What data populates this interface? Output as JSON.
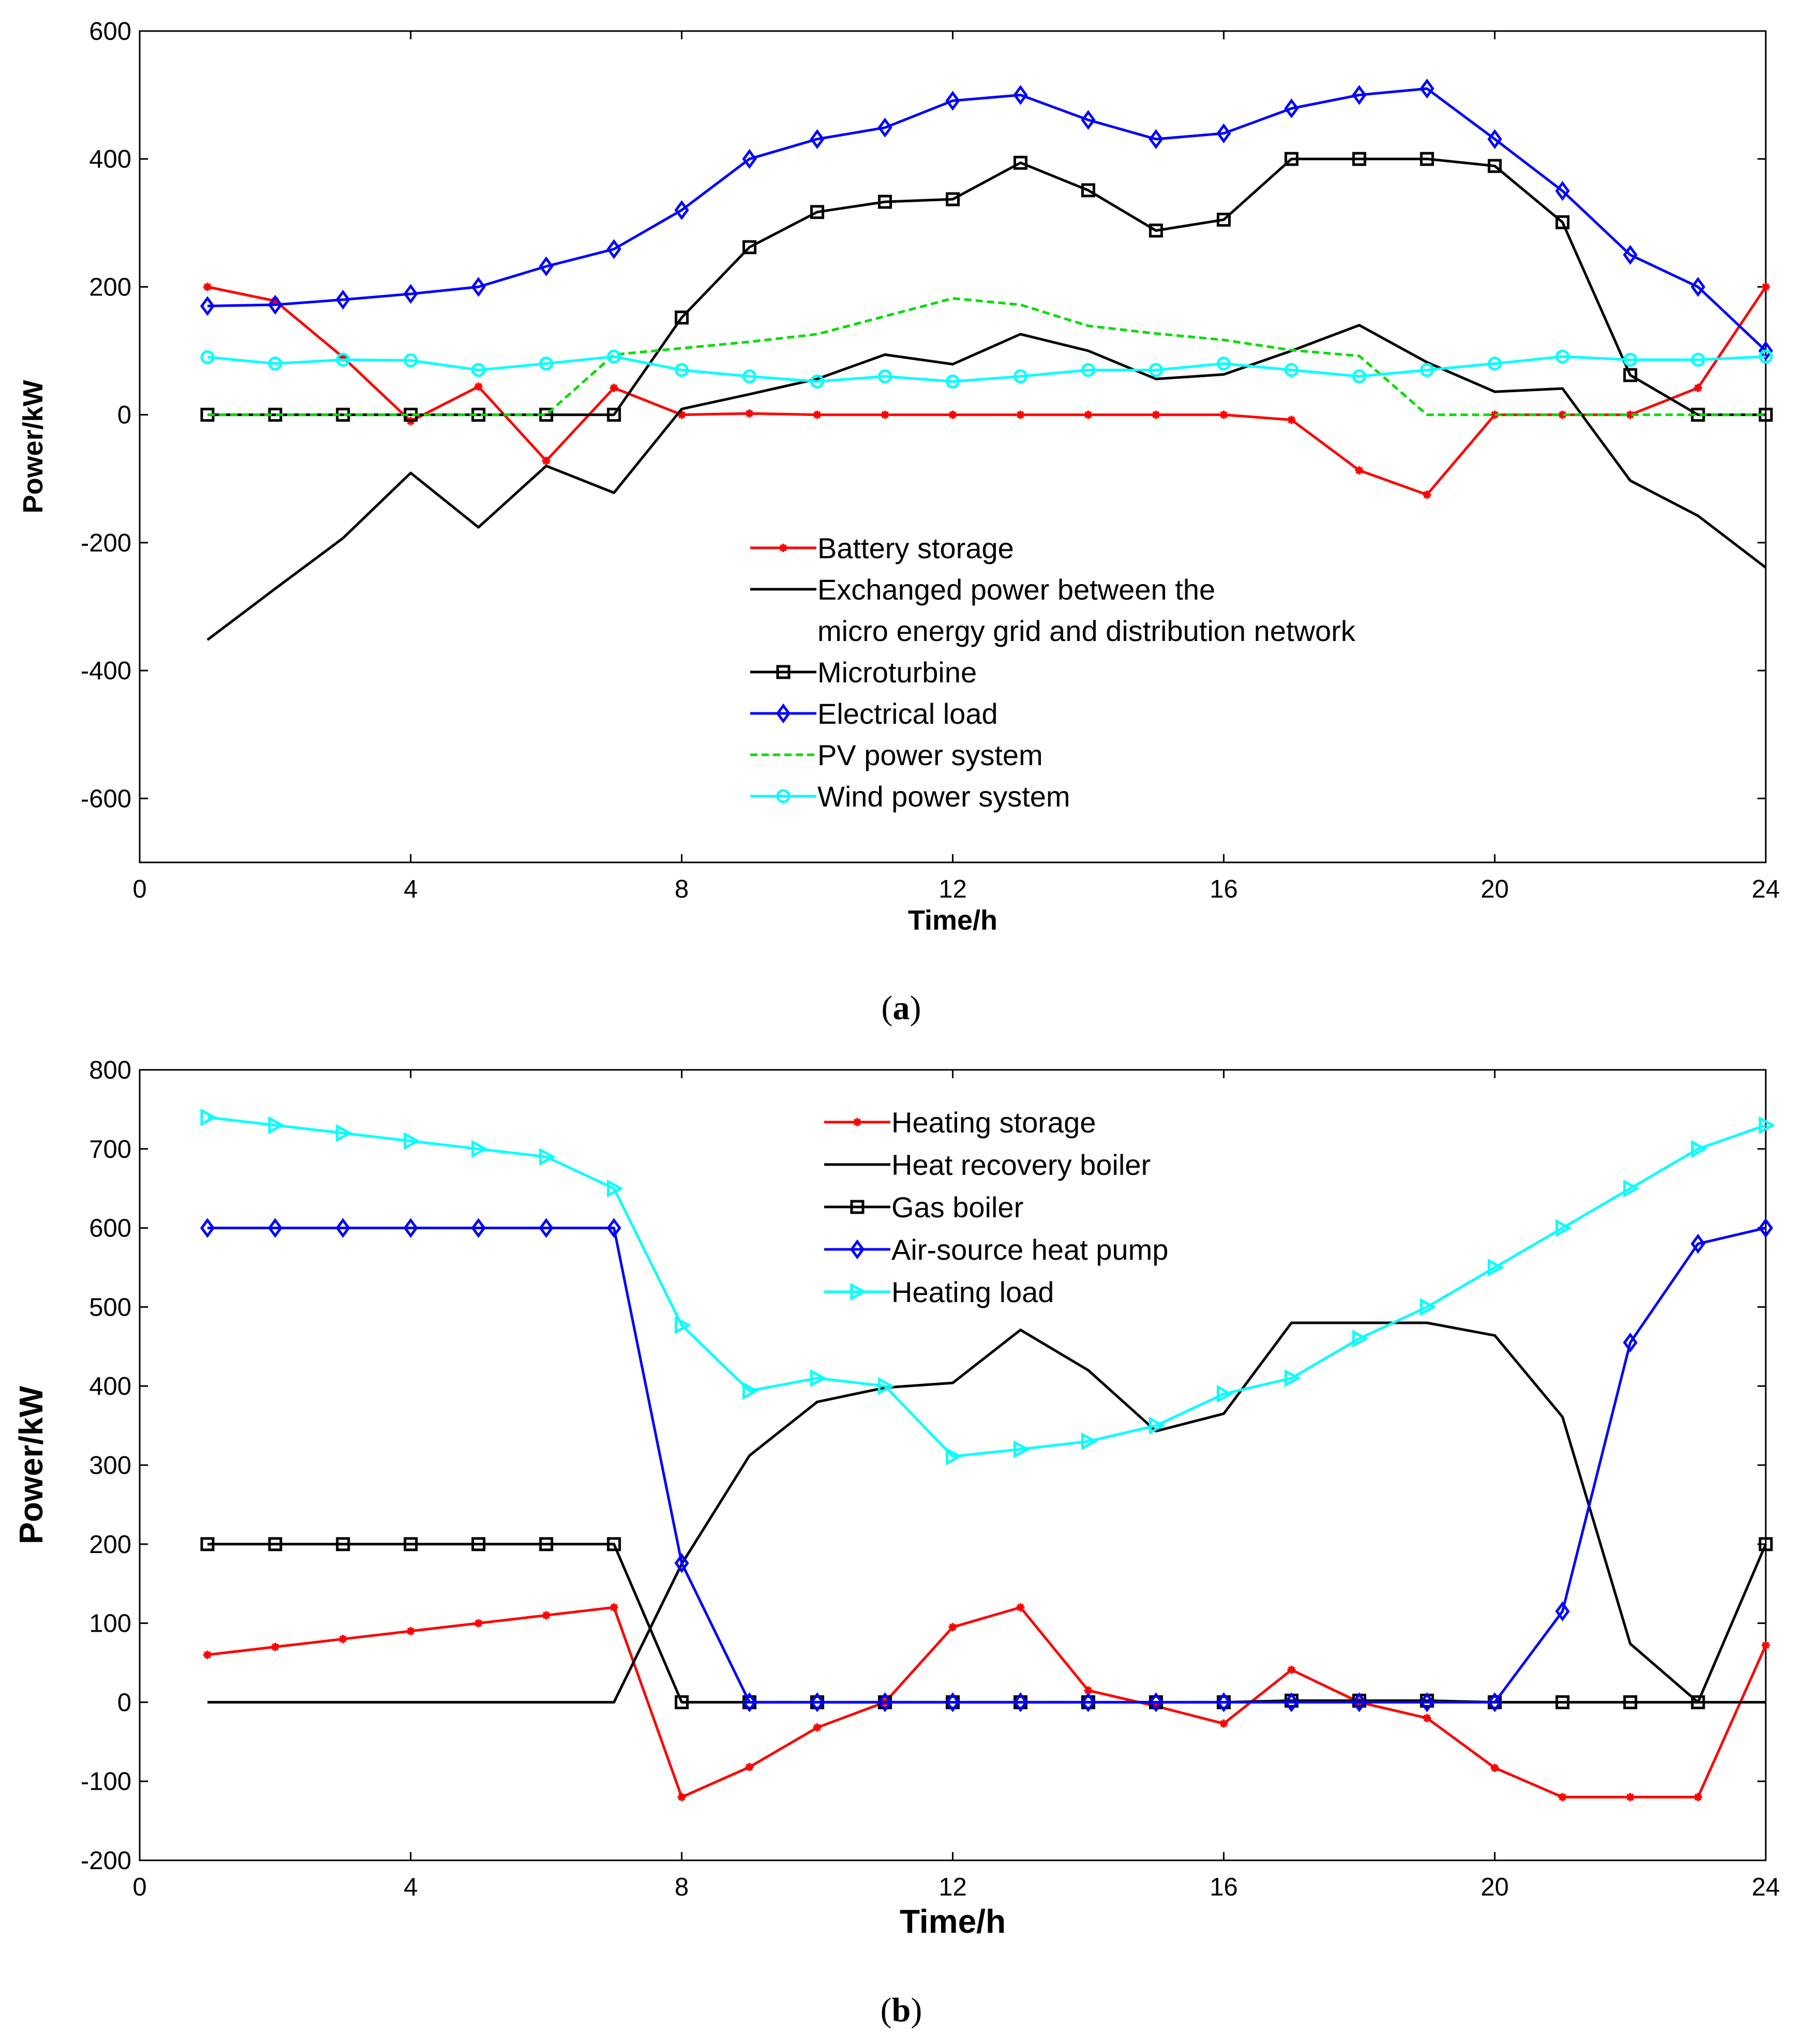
{
  "chart_data": [
    {
      "type": "line",
      "panel_label": "a",
      "xlabel": "Time/h",
      "ylabel": "Power/kW",
      "xlim": [
        0,
        24
      ],
      "ylim": [
        -700,
        600
      ],
      "xticks": [
        0,
        4,
        8,
        12,
        16,
        20,
        24
      ],
      "yticks": [
        -600,
        -400,
        -200,
        0,
        200,
        400,
        600
      ],
      "grid": false,
      "legend_position": "bottom-center",
      "x": [
        1,
        2,
        3,
        4,
        5,
        6,
        7,
        8,
        9,
        10,
        11,
        12,
        13,
        14,
        15,
        16,
        17,
        18,
        19,
        20,
        21,
        22,
        23,
        24
      ],
      "series": [
        {
          "name": "Battery storage",
          "color": "#ff0000",
          "marker": "asterisk",
          "dash": "solid",
          "values": [
            200,
            178,
            90,
            -10,
            44,
            -72,
            42,
            0,
            2,
            0,
            0,
            0,
            0,
            0,
            0,
            0,
            -8,
            -87,
            -125,
            0,
            0,
            0,
            42,
            200
          ]
        },
        {
          "name": "Exchanged power between the\nmicro energy grid and distribution network",
          "color": "#000000",
          "marker": "none",
          "dash": "solid",
          "values": [
            -352,
            -272,
            -193,
            -91,
            -176,
            -80,
            -122,
            9,
            32,
            56,
            94,
            79,
            126,
            100,
            56,
            63,
            100,
            140,
            82,
            36,
            41,
            -103,
            -158,
            -239
          ]
        },
        {
          "name": "Microturbine",
          "color": "#000000",
          "marker": "square",
          "dash": "solid",
          "values": [
            0,
            0,
            0,
            0,
            0,
            0,
            0,
            152,
            262,
            317,
            333,
            337,
            394,
            351,
            288,
            305,
            400,
            400,
            400,
            389,
            301,
            62,
            0,
            0
          ]
        },
        {
          "name": "Electrical load",
          "color": "#0000ff",
          "marker": "diamond",
          "dash": "solid",
          "values": [
            170,
            172,
            180,
            189,
            200,
            232,
            259,
            320,
            400,
            431,
            449,
            491,
            500,
            461,
            431,
            440,
            479,
            500,
            510,
            431,
            350,
            250,
            200,
            100
          ]
        },
        {
          "name": "PV power system",
          "color": "#00dd00",
          "marker": "none",
          "dash": "dashed",
          "values": [
            0,
            0,
            0,
            0,
            0,
            0,
            94,
            104,
            114,
            126,
            154,
            182,
            172,
            139,
            127,
            117,
            101,
            92,
            0,
            0,
            0,
            0,
            0,
            0
          ]
        },
        {
          "name": "Wind power system",
          "color": "#00ffff",
          "marker": "circle",
          "dash": "solid",
          "values": [
            90,
            80,
            86,
            85,
            70,
            80,
            91,
            70,
            60,
            52,
            60,
            52,
            60,
            70,
            70,
            80,
            70,
            60,
            70,
            80,
            91,
            86,
            86,
            91
          ]
        }
      ]
    },
    {
      "type": "line",
      "panel_label": "b",
      "xlabel": "Time/h",
      "ylabel": "Power/kW",
      "xlim": [
        0,
        24
      ],
      "ylim": [
        -200,
        800
      ],
      "xticks": [
        0,
        4,
        8,
        12,
        16,
        20,
        24
      ],
      "yticks": [
        -200,
        -100,
        0,
        100,
        200,
        300,
        400,
        500,
        600,
        700,
        800
      ],
      "grid": false,
      "legend_position": "top-center",
      "x": [
        1,
        2,
        3,
        4,
        5,
        6,
        7,
        8,
        9,
        10,
        11,
        12,
        13,
        14,
        15,
        16,
        17,
        18,
        19,
        20,
        21,
        22,
        23,
        24
      ],
      "series": [
        {
          "name": "Heating storage",
          "color": "#ff0000",
          "marker": "asterisk",
          "dash": "solid",
          "values": [
            60,
            70,
            80,
            90,
            100,
            110,
            120,
            -120,
            -82,
            -32,
            0,
            95,
            120,
            15,
            -5,
            -27,
            41,
            0,
            -20,
            -83,
            -120,
            -120,
            -120,
            72
          ]
        },
        {
          "name": "Heat recovery boiler",
          "color": "#000000",
          "marker": "none",
          "dash": "solid",
          "values": [
            0,
            0,
            0,
            0,
            0,
            0,
            0,
            175,
            312,
            380,
            398,
            404,
            471,
            420,
            343,
            365,
            480,
            480,
            480,
            464,
            361,
            74,
            0,
            0
          ]
        },
        {
          "name": "Gas boiler",
          "color": "#000000",
          "marker": "square",
          "dash": "solid",
          "values": [
            200,
            200,
            200,
            200,
            200,
            200,
            200,
            0,
            0,
            0,
            0,
            0,
            0,
            0,
            0,
            0,
            2,
            2,
            2,
            0,
            0,
            0,
            0,
            200
          ]
        },
        {
          "name": "Air-source heat pump",
          "color": "#0000ff",
          "marker": "diamond",
          "dash": "solid",
          "values": [
            600,
            600,
            600,
            600,
            600,
            600,
            600,
            176,
            0,
            0,
            0,
            0,
            0,
            0,
            0,
            0,
            0,
            0,
            0,
            0,
            115,
            455,
            580,
            600
          ]
        },
        {
          "name": "Heating load",
          "color": "#00ffff",
          "marker": "triangle-right",
          "dash": "solid",
          "values": [
            740,
            730,
            720,
            710,
            700,
            690,
            650,
            477,
            394,
            410,
            400,
            311,
            320,
            330,
            350,
            390,
            410,
            460,
            500,
            550,
            600,
            650,
            700,
            730
          ]
        }
      ]
    }
  ],
  "captions": [
    {
      "open": "(",
      "label": "a",
      "close": ")"
    },
    {
      "open": "(",
      "label": "b",
      "close": ")"
    }
  ]
}
